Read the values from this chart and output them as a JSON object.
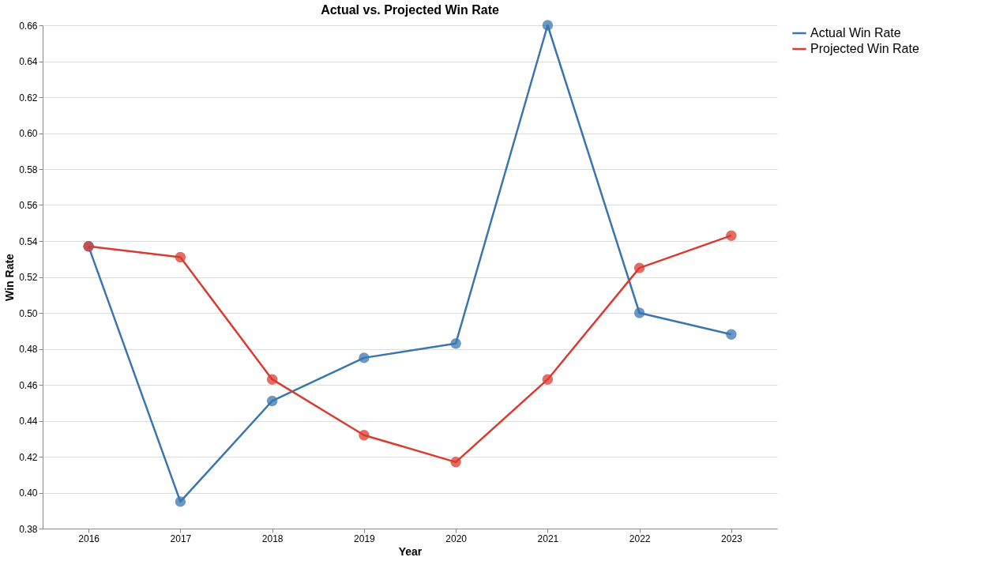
{
  "chart_data": {
    "type": "line",
    "title": "Actual vs. Projected Win Rate",
    "xlabel": "Year",
    "ylabel": "Win Rate",
    "categories": [
      "2016",
      "2017",
      "2018",
      "2019",
      "2020",
      "2021",
      "2022",
      "2023"
    ],
    "series": [
      {
        "name": "Actual Win Rate",
        "color": "#3b75af",
        "values": [
          0.537,
          0.395,
          0.451,
          0.475,
          0.483,
          0.66,
          0.5,
          0.488
        ]
      },
      {
        "name": "Projected Win Rate",
        "color": "#d93b30",
        "values": [
          0.537,
          0.531,
          0.463,
          0.432,
          0.417,
          0.463,
          0.525,
          0.543
        ]
      }
    ],
    "ylim": [
      0.38,
      0.66
    ],
    "yticks": [
      0.38,
      {
        "value": 0.4,
        "label": "0.40"
      },
      0.42,
      0.44,
      0.46,
      0.48,
      {
        "value": 0.5,
        "label": "0.50"
      },
      0.52,
      0.54,
      0.56,
      0.58,
      {
        "value": 0.6,
        "label": "0.60"
      },
      0.62,
      0.64,
      0.66
    ],
    "grid": "y",
    "legend": "top right",
    "marker": "circle",
    "line_style": "solid"
  }
}
